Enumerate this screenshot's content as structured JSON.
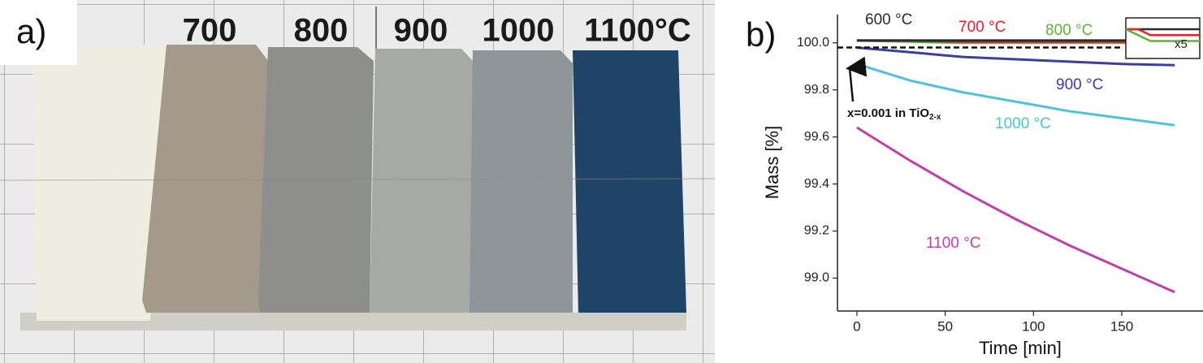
{
  "photo": {
    "label": "a)",
    "temperatures": [
      "700",
      "800",
      "900",
      "1000",
      "1100°C"
    ]
  },
  "chart_data": {
    "type": "line",
    "label": "b)",
    "x_label": "Time [min]",
    "y_label": "Mass [%]",
    "x": [
      0,
      30,
      60,
      90,
      120,
      150,
      180
    ],
    "series": [
      {
        "name": "600 °C",
        "color": "#2b2b2b",
        "values": [
          100.01,
          100.01,
          100.01,
          100.01,
          100.01,
          100.01,
          100.01
        ]
      },
      {
        "name": "700 °C",
        "color": "#e8202a",
        "values": [
          100.01,
          100.01,
          100.005,
          100.005,
          100.005,
          100.005,
          100.005
        ]
      },
      {
        "name": "800 °C",
        "color": "#5cb336",
        "values": [
          100.01,
          100.005,
          100.0,
          100.0,
          100.0,
          100.0,
          100.0
        ]
      },
      {
        "name": "900 °C",
        "color": "#3a3fa0",
        "values": [
          99.98,
          99.96,
          99.94,
          99.93,
          99.92,
          99.91,
          99.905
        ]
      },
      {
        "name": "1000 °C",
        "color": "#4cc3d9",
        "values": [
          99.91,
          99.84,
          99.79,
          99.75,
          99.71,
          99.68,
          99.65
        ]
      },
      {
        "name": "1100 °C",
        "color": "#c040a8",
        "values": [
          99.64,
          99.5,
          99.37,
          99.25,
          99.14,
          99.04,
          98.94
        ]
      }
    ],
    "xlim": [
      -11,
      196
    ],
    "ylim": [
      98.86,
      100.12
    ],
    "xticks": [
      0,
      50,
      100,
      150
    ],
    "yticks": [
      {
        "value": 99.0,
        "label": "99.0"
      },
      99.2,
      99.4,
      99.6,
      99.8,
      {
        "value": 100.0,
        "label": "100.0"
      }
    ],
    "reference_line": {
      "y": 99.98,
      "xmin": -11,
      "xmax": 150
    },
    "annotation": {
      "text": "x=0.001 in TiO",
      "subscript": "2-x"
    },
    "inset_label": "x5"
  }
}
